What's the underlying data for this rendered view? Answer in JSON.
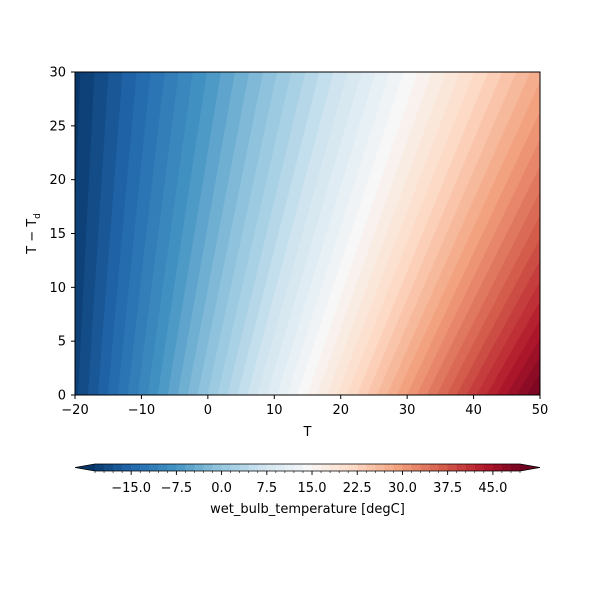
{
  "chart_data": {
    "type": "heatmap",
    "subtype": "filled-contour",
    "x": {
      "label": "T",
      "lim": [
        -20,
        50
      ],
      "ticks": [
        -20,
        -10,
        0,
        10,
        20,
        30,
        40,
        50
      ]
    },
    "y": {
      "label_main": "T − T",
      "label_sub": "d",
      "lim": [
        0,
        30
      ],
      "ticks": [
        0,
        5,
        10,
        15,
        20,
        25,
        30
      ]
    },
    "field": {
      "description": "wet bulb temperature as a function of T and dewpoint depression T − Td",
      "corner_values": {
        "T=-20,dep=0": -20.0,
        "T=-20,dep=30": -21.6,
        "T=50,dep=0": 50.0,
        "T=50,dep=30": 28.0
      }
    },
    "colorbar": {
      "label": "wet_bulb_temperature [degC]",
      "colormap": "RdBu_r",
      "levels_min": -21,
      "levels_step": 1.5,
      "levels_count": 48,
      "extend": "both",
      "ticks": [
        -15,
        -7.5,
        0,
        7.5,
        15,
        22.5,
        30,
        37.5,
        45
      ],
      "tick_labels": [
        "−15.0",
        "−7.5",
        "0.0",
        "7.5",
        "15.0",
        "22.5",
        "30.0",
        "37.5",
        "45.0"
      ]
    },
    "grid": false
  }
}
